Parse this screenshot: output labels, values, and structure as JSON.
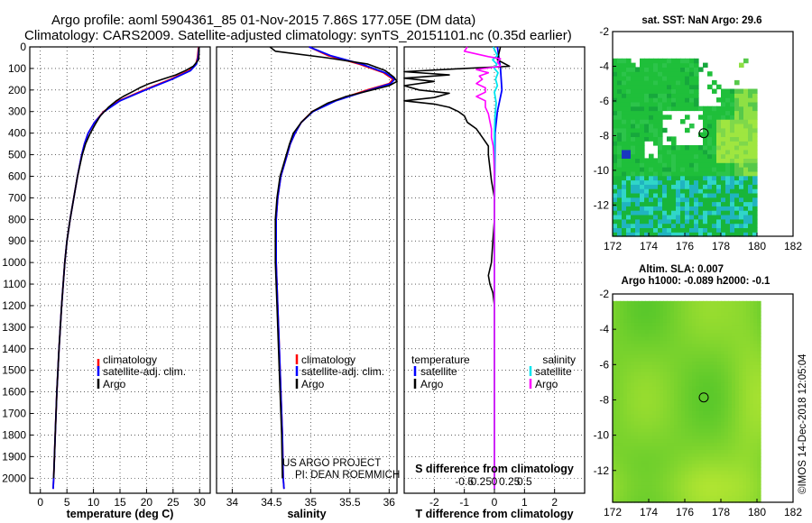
{
  "title": {
    "line1": "Argo profile: aoml 5904361_85 01-Nov-2015 7.86S 177.05E (DM data)",
    "line2": "Climatology: CARS2009. Satellite-adjusted climatology: synTS_20151101.nc (0.35d earlier)"
  },
  "colors": {
    "climatology": "#ff0000",
    "satellite": "#0000ff",
    "argo": "#000000",
    "salinity_satellite": "#00e5ee",
    "salinity_argo": "#ff00ff"
  },
  "chart_data": [
    {
      "type": "line",
      "name": "temperature",
      "xlabel": "temperature (deg C)",
      "xlim": [
        -2,
        32
      ],
      "xticks": [
        "0",
        "5",
        "10",
        "15",
        "20",
        "25",
        "30"
      ],
      "xtick_values": [
        0,
        5,
        10,
        15,
        20,
        25,
        30
      ],
      "ylim": [
        2070,
        0
      ],
      "yticks": [
        "0",
        "100",
        "200",
        "300",
        "400",
        "500",
        "600",
        "700",
        "800",
        "900",
        "1000",
        "1100",
        "1200",
        "1300",
        "1400",
        "1500",
        "1600",
        "1700",
        "1800",
        "1900",
        "2000"
      ],
      "legend": [
        "climatology",
        "satellite-adj. clim.",
        "Argo"
      ],
      "series": [
        {
          "name": "climatology",
          "color": "#ff0000",
          "depth": [
            0,
            50,
            80,
            110,
            150,
            200,
            250,
            300,
            350,
            400,
            450,
            500,
            600,
            700,
            800,
            900,
            1000,
            1200,
            1400,
            1600,
            1800,
            2000,
            2050
          ],
          "values": [
            29.8,
            29.6,
            29.3,
            28.0,
            24.5,
            19.5,
            14.8,
            11.9,
            10.2,
            9.0,
            8.3,
            7.8,
            7.0,
            6.3,
            5.6,
            5.0,
            4.6,
            4.0,
            3.5,
            3.1,
            2.8,
            2.5,
            2.4
          ]
        },
        {
          "name": "satellite-adj. clim.",
          "color": "#0000ff",
          "depth": [
            0,
            50,
            80,
            110,
            150,
            200,
            250,
            300,
            350,
            400,
            450,
            500,
            600,
            700,
            800,
            900,
            1000,
            1200,
            1400,
            1600,
            1800,
            2000,
            2050
          ],
          "values": [
            29.9,
            29.7,
            29.4,
            28.3,
            24.8,
            19.8,
            15.0,
            12.0,
            10.2,
            9.0,
            8.3,
            7.8,
            7.0,
            6.3,
            5.6,
            5.0,
            4.6,
            4.0,
            3.5,
            3.1,
            2.8,
            2.5,
            2.4
          ]
        },
        {
          "name": "Argo",
          "color": "#000000",
          "depth": [
            0,
            30,
            60,
            90,
            110,
            130,
            150,
            170,
            190,
            210,
            230,
            250,
            280,
            320,
            360,
            400,
            450,
            500,
            600,
            700,
            800,
            900,
            1000,
            1200,
            1400,
            1600,
            1800,
            2000
          ],
          "values": [
            29.9,
            29.9,
            29.8,
            28.8,
            27.3,
            25.5,
            23.0,
            20.5,
            18.7,
            17.2,
            15.6,
            14.3,
            12.8,
            11.3,
            10.3,
            9.4,
            8.5,
            7.9,
            7.0,
            6.3,
            5.6,
            5.0,
            4.6,
            4.0,
            3.5,
            3.1,
            2.8,
            2.5
          ]
        }
      ]
    },
    {
      "type": "line",
      "name": "salinity",
      "xlabel": "salinity",
      "xlim": [
        33.8,
        36.1
      ],
      "xticks": [
        "34",
        "34.5",
        "35",
        "35.5",
        "36"
      ],
      "xtick_values": [
        34,
        34.5,
        35,
        35.5,
        36
      ],
      "ylim": [
        2070,
        0
      ],
      "legend": [
        "climatology",
        "satellite-adj. clim.",
        "Argo"
      ],
      "annotation": [
        "US ARGO PROJECT",
        "PI: DEAN ROEMMICH"
      ],
      "series": [
        {
          "name": "climatology",
          "color": "#ff0000",
          "depth": [
            0,
            40,
            80,
            120,
            150,
            170,
            200,
            250,
            300,
            350,
            400,
            450,
            500,
            600,
            700,
            800,
            1000,
            1200,
            1400,
            1600,
            1800,
            2000,
            2050
          ],
          "values": [
            34.98,
            35.22,
            35.62,
            35.93,
            36.05,
            36.0,
            35.72,
            35.3,
            35.02,
            34.88,
            34.8,
            34.74,
            34.7,
            34.62,
            34.58,
            34.56,
            34.56,
            34.58,
            34.6,
            34.62,
            34.64,
            34.65,
            34.66
          ]
        },
        {
          "name": "satellite-adj. clim.",
          "color": "#0000ff",
          "depth": [
            0,
            40,
            80,
            120,
            150,
            170,
            200,
            250,
            300,
            350,
            400,
            450,
            500,
            600,
            700,
            800,
            1000,
            1200,
            1400,
            1600,
            1800,
            2000,
            2050
          ],
          "values": [
            34.98,
            35.25,
            35.65,
            35.95,
            36.07,
            36.02,
            35.75,
            35.32,
            35.03,
            34.88,
            34.8,
            34.74,
            34.7,
            34.62,
            34.58,
            34.56,
            34.56,
            34.58,
            34.6,
            34.62,
            34.64,
            34.65,
            34.66
          ]
        },
        {
          "name": "Argo",
          "color": "#000000",
          "depth": [
            0,
            20,
            50,
            80,
            110,
            140,
            160,
            180,
            200,
            230,
            260,
            300,
            350,
            400,
            450,
            500,
            600,
            700,
            800,
            1000,
            1200,
            1400,
            1600,
            1800,
            2000
          ],
          "values": [
            34.48,
            34.55,
            35.2,
            35.73,
            35.95,
            36.06,
            36.1,
            36.0,
            35.78,
            35.45,
            35.22,
            35.02,
            34.88,
            34.78,
            34.73,
            34.69,
            34.61,
            34.57,
            34.55,
            34.55,
            34.57,
            34.59,
            34.61,
            34.63,
            34.64
          ]
        }
      ]
    },
    {
      "type": "line",
      "name": "differences",
      "xlabel": "T difference from climatology",
      "top_xlabel": "S difference from climatology",
      "xlim": [
        -3,
        3
      ],
      "xticks": [
        "-2",
        "-1",
        "0",
        "1",
        "2"
      ],
      "xtick_values": [
        -2,
        -1,
        0,
        1,
        2
      ],
      "s_xticks": [
        "-0.5",
        "-0.25",
        "0",
        "0.25",
        "0.5"
      ],
      "s_xtick_values": [
        -0.5,
        -0.25,
        0,
        0.25,
        0.5
      ],
      "legend_temperature": {
        "title": "temperature",
        "items": [
          "satellite",
          "Argo"
        ]
      },
      "legend_salinity": {
        "title": "salinity",
        "items": [
          "satellite",
          "Argo"
        ]
      },
      "series": [
        {
          "name": "temperature satellite",
          "color": "#0000ff",
          "depth": [
            0,
            100,
            200,
            300,
            400,
            600,
            800,
            1000,
            1500,
            2050
          ],
          "values": [
            0.1,
            0.2,
            0.25,
            0.1,
            0.02,
            0.01,
            0.0,
            0.0,
            0.0,
            0.0
          ]
        },
        {
          "name": "temperature Argo",
          "color": "#000000",
          "depth": [
            0,
            60,
            90,
            100,
            115,
            130,
            145,
            160,
            180,
            200,
            215,
            235,
            250,
            265,
            280,
            300,
            320,
            350,
            380,
            420,
            460,
            500,
            560,
            620,
            700,
            800,
            900,
            1000,
            1060,
            1100,
            1140,
            1200,
            1300,
            1500,
            1700,
            1900,
            2050
          ],
          "values": [
            0.2,
            0.1,
            0.5,
            -1.0,
            -3.0,
            -1.5,
            -3.0,
            -2.0,
            -3.0,
            -2.5,
            -1.5,
            -2.0,
            -3.0,
            -2.0,
            -1.5,
            -1.2,
            -1.0,
            -0.9,
            -0.6,
            -0.4,
            -0.2,
            -0.2,
            -0.15,
            -0.1,
            0.0,
            0.0,
            -0.05,
            -0.1,
            -0.2,
            -0.15,
            -0.05,
            0.0,
            0.0,
            0.0,
            0.0,
            0.0,
            0.0
          ]
        },
        {
          "name": "salinity satellite",
          "color": "#00e5ee",
          "depth": [
            0,
            40,
            60,
            80,
            100,
            120,
            150,
            180,
            210,
            260,
            320,
            400,
            500,
            700,
            900,
            1200,
            1500,
            2050
          ],
          "values": [
            -0.02,
            0.05,
            -0.03,
            0.04,
            0.0,
            0.06,
            0.02,
            0.05,
            0.0,
            0.03,
            0.01,
            0.0,
            0.0,
            0.0,
            0.0,
            0.0,
            0.0,
            0.0
          ]
        },
        {
          "name": "salinity Argo",
          "color": "#ff00ff",
          "depth": [
            0,
            20,
            45,
            55,
            70,
            90,
            105,
            120,
            135,
            150,
            170,
            190,
            210,
            230,
            250,
            280,
            310,
            340,
            380,
            420,
            460,
            500,
            600,
            700,
            800,
            1000,
            1500,
            2050
          ],
          "values": [
            -0.45,
            -0.5,
            -0.1,
            0.1,
            0.05,
            0.1,
            -0.3,
            -0.1,
            -0.25,
            -0.2,
            -0.3,
            -0.15,
            -0.15,
            -0.3,
            -0.15,
            -0.15,
            -0.1,
            -0.08,
            -0.05,
            -0.05,
            -0.02,
            -0.01,
            0.0,
            0.0,
            0.0,
            0.0,
            0.0,
            0.0
          ]
        }
      ]
    },
    {
      "type": "heatmap",
      "name": "sst-map",
      "title": "sat. SST: NaN Argo: 29.6",
      "xlim": [
        172,
        182
      ],
      "ylim": [
        -13.8,
        -2
      ],
      "xticks": [
        "172",
        "174",
        "176",
        "178",
        "180",
        "182"
      ],
      "xtick_values": [
        172,
        174,
        176,
        178,
        180,
        182
      ],
      "yticks": [
        "-2",
        "-4",
        "-6",
        "-8",
        "-10",
        "-12"
      ],
      "ytick_values": [
        -2,
        -4,
        -6,
        -8,
        -10,
        -12
      ],
      "argo_position": [
        177.05,
        -7.86
      ]
    },
    {
      "type": "heatmap",
      "name": "sla-map",
      "title": "Altim. SLA: 0.007",
      "subtitle": "Argo h1000: -0.089 h2000: -0.1",
      "xlim": [
        172,
        182
      ],
      "ylim": [
        -13.8,
        -2
      ],
      "xticks": [
        "172",
        "174",
        "176",
        "178",
        "180",
        "182"
      ],
      "xtick_values": [
        172,
        174,
        176,
        178,
        180,
        182
      ],
      "yticks": [
        "-2",
        "-4",
        "-6",
        "-8",
        "-10",
        "-12"
      ],
      "ytick_values": [
        -2,
        -4,
        -6,
        -8,
        -10,
        -12
      ],
      "argo_position": [
        177.05,
        -7.86
      ]
    }
  ],
  "credit": "©IMOS 14-Dec-2018 12:05:04"
}
